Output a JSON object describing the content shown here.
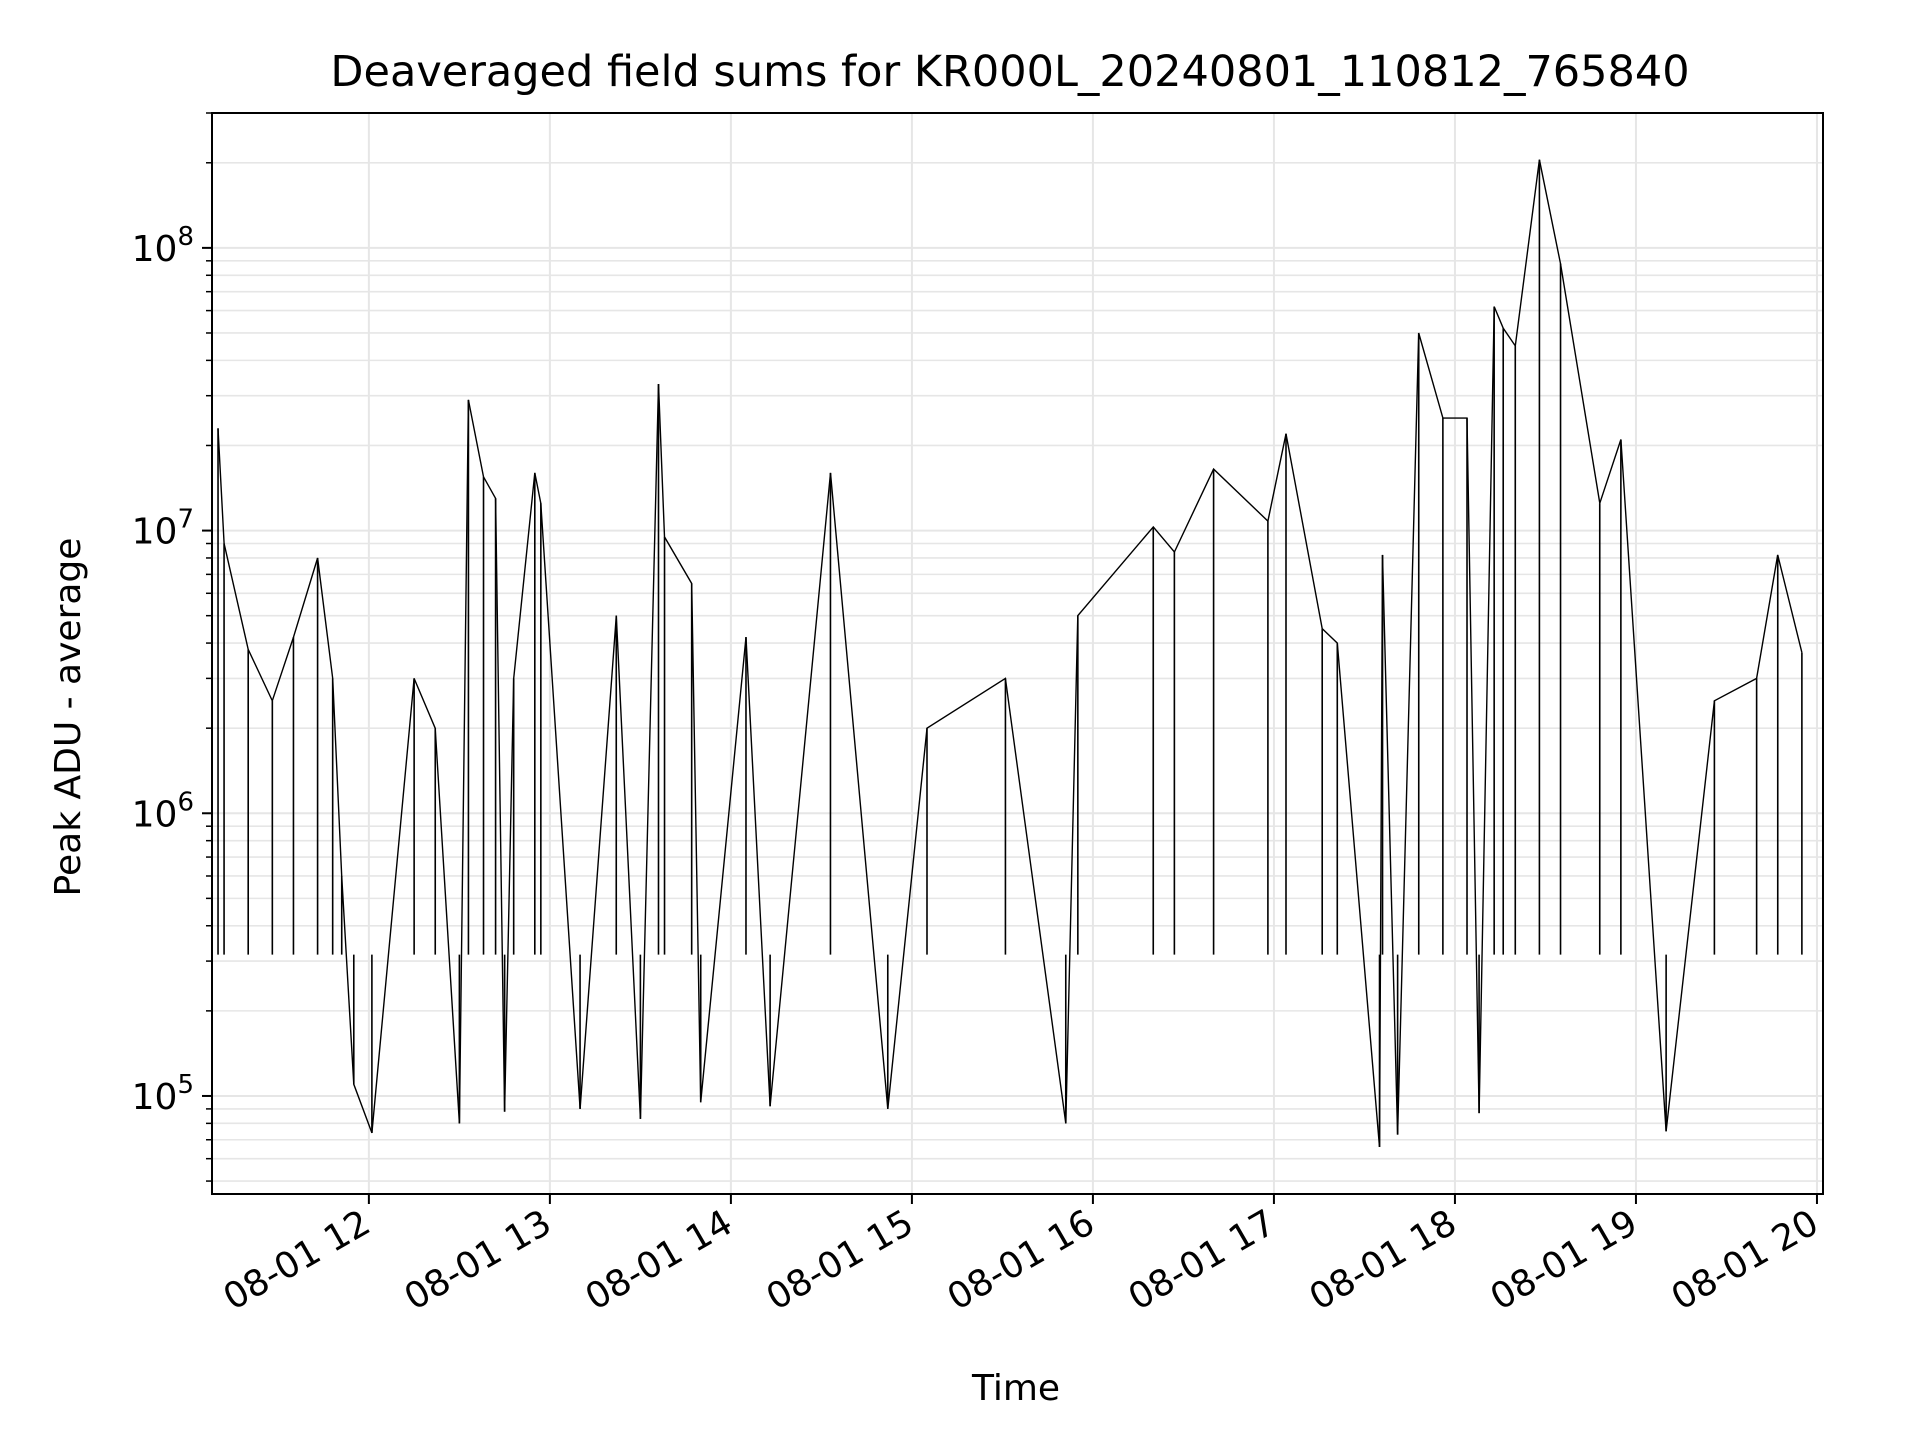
{
  "chart_data": {
    "type": "line",
    "title": "Deaveraged field sums for KR000L_20240801_110812_765840",
    "xlabel": "Time",
    "ylabel": "Peak ADU - average",
    "yscale": "log",
    "ylim": [
      45000,
      300000000
    ],
    "xlim": [
      "2024-08-01 11:08",
      "2024-08-01 20:02"
    ],
    "x_ticks": [
      {
        "value": "2024-08-01 12:00",
        "label": "08-01 12"
      },
      {
        "value": "2024-08-01 13:00",
        "label": "08-01 13"
      },
      {
        "value": "2024-08-01 14:00",
        "label": "08-01 14"
      },
      {
        "value": "2024-08-01 15:00",
        "label": "08-01 15"
      },
      {
        "value": "2024-08-01 16:00",
        "label": "08-01 16"
      },
      {
        "value": "2024-08-01 17:00",
        "label": "08-01 17"
      },
      {
        "value": "2024-08-01 18:00",
        "label": "08-01 18"
      },
      {
        "value": "2024-08-01 19:00",
        "label": "08-01 19"
      },
      {
        "value": "2024-08-01 20:00",
        "label": "08-01 20"
      }
    ],
    "y_ticks": [
      {
        "value": 100000,
        "base": "10",
        "exp": "5"
      },
      {
        "value": 1000000,
        "base": "10",
        "exp": "6"
      },
      {
        "value": 10000000,
        "base": "10",
        "exp": "7"
      },
      {
        "value": 100000000,
        "base": "10",
        "exp": "8"
      }
    ],
    "grid": true,
    "line_color": "#000000",
    "grid_color": "#e6e6e6",
    "series": [
      {
        "x": [
          "2024-08-01 11:10",
          "2024-08-01 11:12",
          "2024-08-01 11:20",
          "2024-08-01 11:28",
          "2024-08-01 11:35",
          "2024-08-01 11:43",
          "2024-08-01 11:48",
          "2024-08-01 11:51",
          "2024-08-01 11:55",
          "2024-08-01 12:01",
          "2024-08-01 12:15",
          "2024-08-01 12:22",
          "2024-08-01 12:30",
          "2024-08-01 12:33",
          "2024-08-01 12:38",
          "2024-08-01 12:42",
          "2024-08-01 12:45",
          "2024-08-01 12:48",
          "2024-08-01 12:55",
          "2024-08-01 12:57",
          "2024-08-01 13:10",
          "2024-08-01 13:22",
          "2024-08-01 13:30",
          "2024-08-01 13:36",
          "2024-08-01 13:38",
          "2024-08-01 13:47",
          "2024-08-01 13:50",
          "2024-08-01 14:05",
          "2024-08-01 14:13",
          "2024-08-01 14:33",
          "2024-08-01 14:52",
          "2024-08-01 15:05",
          "2024-08-01 15:31",
          "2024-08-01 15:51",
          "2024-08-01 15:55",
          "2024-08-01 16:20",
          "2024-08-01 16:27",
          "2024-08-01 16:40",
          "2024-08-01 16:58",
          "2024-08-01 17:04",
          "2024-08-01 17:16",
          "2024-08-01 17:21",
          "2024-08-01 17:35",
          "2024-08-01 17:36",
          "2024-08-01 17:41",
          "2024-08-01 17:48",
          "2024-08-01 17:56",
          "2024-08-01 18:04",
          "2024-08-01 18:08",
          "2024-08-01 18:13",
          "2024-08-01 18:16",
          "2024-08-01 18:20",
          "2024-08-01 18:28",
          "2024-08-01 18:35",
          "2024-08-01 18:48",
          "2024-08-01 18:55",
          "2024-08-01 19:10",
          "2024-08-01 19:26",
          "2024-08-01 19:40",
          "2024-08-01 19:47",
          "2024-08-01 19:55"
        ],
        "y": [
          23000000,
          9000000,
          3800000,
          2500000,
          4200000,
          8000000,
          3000000,
          600000,
          110000,
          74000,
          3000000,
          2000000,
          80000,
          29000000,
          15500000,
          13000000,
          88000,
          3000000,
          16000000,
          12500000,
          90000,
          5000000,
          83000,
          33000000,
          9500000,
          6500000,
          95000,
          4200000,
          92000,
          16000000,
          90000,
          2000000,
          3000000,
          80000,
          5000000,
          10300000,
          8400000,
          16500000,
          10800000,
          22000000,
          4500000,
          4000000,
          66000,
          8200000,
          73000,
          50000000,
          25000000,
          25000000,
          87000,
          62000000,
          52000000,
          45000000,
          205000000,
          88000000,
          12500000,
          21000000,
          75000,
          2500000,
          3000000,
          8200000,
          3700000
        ]
      }
    ]
  }
}
